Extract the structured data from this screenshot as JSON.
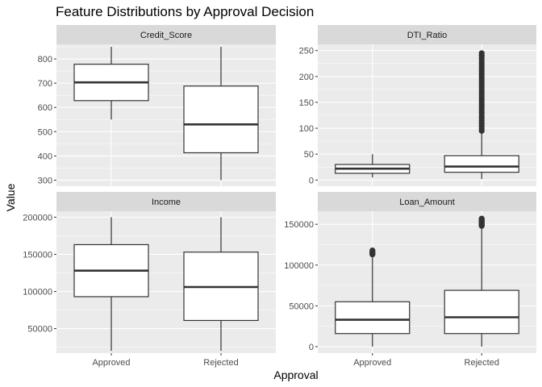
{
  "chart_data": {
    "type": "boxplot",
    "title": "Feature Distributions by Approval Decision",
    "xlabel": "Approval",
    "ylabel": "Value",
    "categories": [
      "Approved",
      "Rejected"
    ],
    "grid": true,
    "facets": [
      {
        "name": "Credit_Score",
        "ylim": [
          275,
          860
        ],
        "yticks": [
          300,
          400,
          500,
          600,
          700,
          800
        ],
        "ytick_labels": [
          "300",
          "400",
          "500",
          "600",
          "700",
          "800"
        ],
        "boxes": [
          {
            "category": "Approved",
            "min": 550,
            "q1": 628,
            "median": 703,
            "q3": 778,
            "max": 850,
            "outliers": []
          },
          {
            "category": "Rejected",
            "min": 300,
            "q1": 413,
            "median": 530,
            "q3": 688,
            "max": 850,
            "outliers": []
          }
        ]
      },
      {
        "name": "DTI_Ratio",
        "ylim": [
          -12,
          262
        ],
        "yticks": [
          0,
          50,
          100,
          150,
          200,
          250
        ],
        "ytick_labels": [
          "0",
          "50",
          "100",
          "150",
          "200",
          "250"
        ],
        "boxes": [
          {
            "category": "Approved",
            "min": 5,
            "q1": 13,
            "median": 22,
            "q3": 30,
            "max": 50,
            "outliers": []
          },
          {
            "category": "Rejected",
            "min": 2,
            "q1": 15,
            "median": 26,
            "q3": 47,
            "max": 94,
            "outliers": [
              95,
              100,
              105,
              110,
              115,
              120,
              125,
              130,
              135,
              140,
              145,
              150,
              155,
              160,
              165,
              170,
              175,
              180,
              185,
              190,
              195,
              200,
              205,
              210,
              215,
              220,
              225,
              230,
              235,
              240,
              245
            ]
          }
        ]
      },
      {
        "name": "Income",
        "ylim": [
          17000,
          208000
        ],
        "yticks": [
          50000,
          100000,
          150000,
          200000
        ],
        "ytick_labels": [
          "50000",
          "100000",
          "150000",
          "200000"
        ],
        "boxes": [
          {
            "category": "Approved",
            "min": 20000,
            "q1": 93000,
            "median": 128000,
            "q3": 163000,
            "max": 200000,
            "outliers": []
          },
          {
            "category": "Rejected",
            "min": 20000,
            "q1": 61000,
            "median": 106000,
            "q3": 153000,
            "max": 200000,
            "outliers": []
          }
        ]
      },
      {
        "name": "Loan_Amount",
        "ylim": [
          -8000,
          166000
        ],
        "yticks": [
          0,
          50000,
          100000,
          150000
        ],
        "ytick_labels": [
          "0",
          "50000",
          "100000",
          "150000"
        ],
        "boxes": [
          {
            "category": "Approved",
            "min": 0,
            "q1": 16000,
            "median": 33000,
            "q3": 55000,
            "max": 112000,
            "outliers": [
              113000,
              114000,
              115000,
              116000,
              117000,
              118000
            ]
          },
          {
            "category": "Rejected",
            "min": 0,
            "q1": 16000,
            "median": 36000,
            "q3": 69000,
            "max": 147000,
            "outliers": [
              148000,
              149000,
              150000,
              151000,
              152000,
              153000,
              154000,
              155000,
              156000,
              157000
            ]
          }
        ]
      }
    ]
  },
  "colors": {
    "panel_background": "#ebebeb",
    "grid_major": "#ffffff",
    "strip_background": "#d9d9d9",
    "box_fill": "#ffffff",
    "box_stroke": "#333333",
    "tick_text": "#4d4d4d"
  }
}
